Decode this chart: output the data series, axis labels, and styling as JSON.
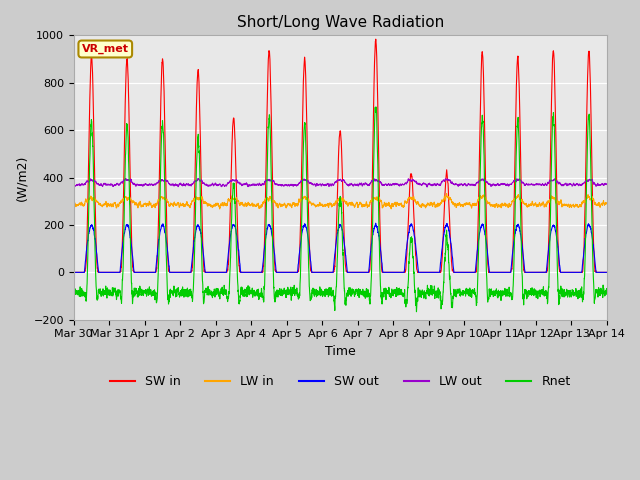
{
  "title": "Short/Long Wave Radiation",
  "xlabel": "Time",
  "ylabel": "(W/m2)",
  "ylim": [
    -200,
    1000
  ],
  "yticks": [
    -200,
    0,
    200,
    400,
    600,
    800,
    1000
  ],
  "n_days": 15,
  "annotation": "VR_met",
  "legend": [
    "SW in",
    "LW in",
    "SW out",
    "LW out",
    "Rnet"
  ],
  "colors": {
    "SW_in": "#ff0000",
    "LW_in": "#ffa500",
    "SW_out": "#0000ff",
    "LW_out": "#9900cc",
    "Rnet": "#00cc00"
  },
  "xtick_labels": [
    "Mar 30",
    "Mar 31",
    "Apr 1",
    "Apr 2",
    "Apr 3",
    "Apr 4",
    "Apr 5",
    "Apr 6",
    "Apr 7",
    "Apr 8",
    "Apr 9",
    "Apr 10",
    "Apr 11",
    "Apr 12",
    "Apr 13",
    "Apr 14"
  ],
  "peak_heights": [
    910,
    900,
    900,
    850,
    650,
    940,
    900,
    600,
    980,
    420,
    420,
    930,
    910,
    940,
    940
  ],
  "background_color": "#cccccc",
  "plot_bg_color": "#e8e8e8",
  "figsize": [
    6.4,
    4.8
  ],
  "dpi": 100
}
